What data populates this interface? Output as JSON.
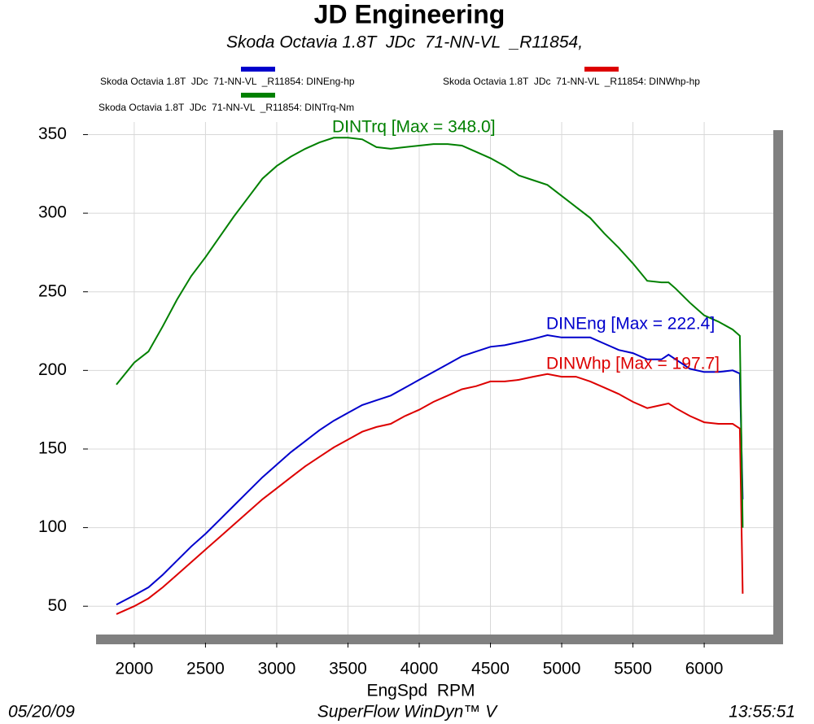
{
  "chart_data": {
    "type": "line",
    "title": "JD Engineering",
    "subtitle": "Skoda Octavia 1.8T  JDc  71-NN-VL  _R11854,",
    "x_label": "EngSpd  RPM",
    "footer_left": "05/20/09",
    "footer_center": "SuperFlow WinDyn™ V",
    "footer_right": "13:55:51",
    "x": [
      1875,
      2000,
      2100,
      2200,
      2300,
      2400,
      2500,
      2600,
      2700,
      2800,
      2900,
      3000,
      3100,
      3200,
      3300,
      3400,
      3500,
      3600,
      3700,
      3800,
      3900,
      4000,
      4100,
      4200,
      4300,
      4400,
      4500,
      4600,
      4700,
      4800,
      4900,
      5000,
      5100,
      5200,
      5300,
      5400,
      5500,
      5600,
      5700,
      5750,
      5800,
      5900,
      6000,
      6100,
      6200,
      6250,
      6270
    ],
    "series": [
      {
        "name": "Skoda Octavia 1.8T  JDc  71-NN-VL  _R11854: DINEng-hp",
        "color": "#0000cc",
        "values": [
          51,
          57,
          62,
          70,
          79,
          88,
          96,
          105,
          114,
          123,
          132,
          140,
          148,
          155,
          162,
          168,
          173,
          178,
          181,
          184,
          189,
          194,
          199,
          204,
          209,
          212,
          215,
          216,
          218,
          220,
          222.4,
          221,
          221,
          221,
          217,
          213,
          211,
          207,
          207,
          210,
          207,
          201,
          199,
          199,
          200,
          198,
          118
        ]
      },
      {
        "name": "Skoda Octavia 1.8T  JDc  71-NN-VL  _R11854: DINWhp-hp",
        "color": "#dd0000",
        "values": [
          45,
          50,
          55,
          62,
          70,
          78,
          86,
          94,
          102,
          110,
          118,
          125,
          132,
          139,
          145,
          151,
          156,
          161,
          164,
          166,
          171,
          175,
          180,
          184,
          188,
          190,
          193,
          193,
          194,
          196,
          197.7,
          196,
          196,
          193,
          189,
          185,
          180,
          176,
          178,
          179,
          176,
          171,
          167,
          166,
          166,
          163,
          58
        ]
      },
      {
        "name": "Skoda Octavia 1.8T  JDc  71-NN-VL  _R11854: DINTrq-Nm",
        "color": "#008000",
        "values": [
          191,
          205,
          212,
          228,
          245,
          260,
          272,
          285,
          298,
          310,
          322,
          330,
          336,
          341,
          345,
          348,
          348,
          347,
          342,
          341,
          342,
          343,
          344,
          344,
          343,
          339,
          335,
          330,
          324,
          321,
          318,
          311,
          304,
          297,
          287,
          278,
          268,
          257,
          256,
          256,
          252,
          243,
          235,
          231,
          226,
          222,
          100
        ]
      }
    ],
    "annotations": [
      "DINEng [Max = 222.4]",
      "DINWhp [Max = 197.7]",
      "DINTrq [Max = 348.0]"
    ],
    "xlim": [
      1675,
      6485
    ],
    "ylim": [
      32,
      358
    ],
    "xticks": [
      2000,
      2500,
      3000,
      3500,
      4000,
      4500,
      5000,
      5500,
      6000
    ],
    "yticks": [
      50,
      100,
      150,
      200,
      250,
      300,
      350
    ],
    "grid": true
  }
}
